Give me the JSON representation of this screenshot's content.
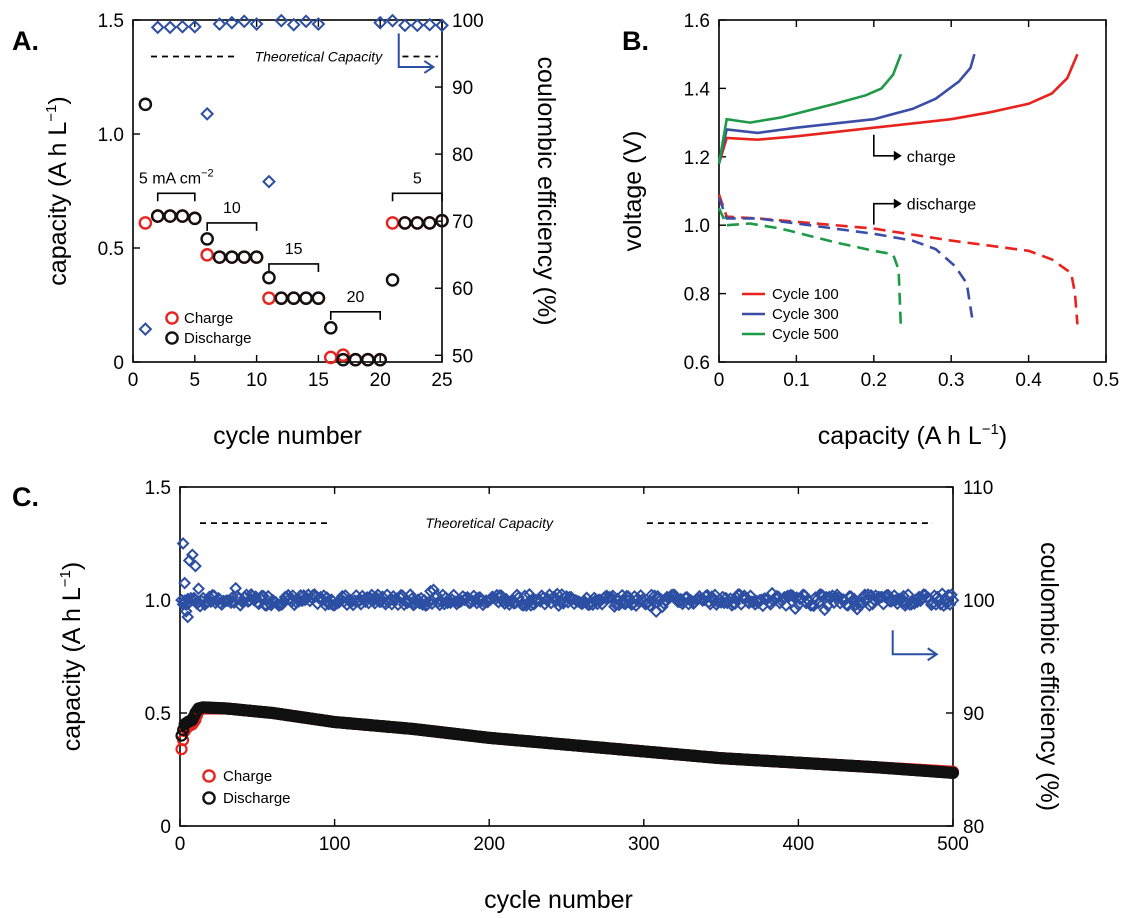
{
  "figure": {
    "colors": {
      "charge": "#e8231e",
      "discharge": "#111111",
      "efficiency": "#2c4fa3",
      "cycle100": "#e8231e",
      "cycle300": "#3a4ea8",
      "cycle500": "#1d9a46"
    }
  },
  "chart_data": [
    {
      "id": "A",
      "panel_label": "A.",
      "type": "scatter",
      "xlabel": "cycle number",
      "ylabel": "capacity (A h L",
      "ylabel_sup": "−1",
      "ylabel_close": ")",
      "y2label": "coulombic efficiency (%)",
      "xlim": [
        0,
        25
      ],
      "ylim": [
        0,
        1.5
      ],
      "y2lim": [
        49,
        100
      ],
      "xticks": [
        "0",
        "5",
        "10",
        "15",
        "20",
        "25"
      ],
      "yticks": [
        "0",
        "0.5",
        "1.0",
        "1.5"
      ],
      "y2ticks": [
        "50",
        "60",
        "70",
        "80",
        "90",
        "100"
      ],
      "theoretical_capacity": {
        "label": "Theoretical Capacity",
        "value": 1.34
      },
      "legend": [
        {
          "name": "Charge",
          "marker": "circle",
          "color": "#e8231e"
        },
        {
          "name": "Discharge",
          "marker": "circle",
          "color": "#111111"
        }
      ],
      "annotations": [
        {
          "text": "5 mA cm",
          "sup": "−2",
          "from": 2,
          "to": 5,
          "y": 0.74
        },
        {
          "text": "10",
          "from": 6,
          "to": 10,
          "y": 0.61
        },
        {
          "text": "15",
          "from": 11,
          "to": 15,
          "y": 0.43
        },
        {
          "text": "20",
          "from": 16,
          "to": 20,
          "y": 0.22
        },
        {
          "text": "5",
          "from": 21,
          "to": 25,
          "y": 0.74
        }
      ],
      "series": [
        {
          "name": "Charge",
          "axis": "left",
          "x": [
            1,
            2,
            3,
            4,
            5,
            6,
            7,
            8,
            9,
            10,
            11,
            12,
            13,
            14,
            15,
            16,
            17,
            18,
            19,
            20,
            21,
            22,
            23,
            24,
            25
          ],
          "values": [
            0.61,
            0.64,
            0.64,
            0.64,
            0.63,
            0.47,
            0.46,
            0.46,
            0.46,
            0.46,
            0.28,
            0.28,
            0.28,
            0.28,
            0.28,
            0.02,
            0.03,
            0.01,
            0.01,
            0.01,
            0.61,
            0.61,
            0.61,
            0.61,
            0.62
          ]
        },
        {
          "name": "Discharge",
          "axis": "left",
          "x": [
            1,
            2,
            3,
            4,
            5,
            6,
            7,
            8,
            9,
            10,
            11,
            12,
            13,
            14,
            15,
            16,
            17,
            18,
            19,
            20,
            21,
            22,
            23,
            24,
            25
          ],
          "values": [
            1.13,
            0.64,
            0.64,
            0.64,
            0.63,
            0.54,
            0.46,
            0.46,
            0.46,
            0.46,
            0.37,
            0.28,
            0.28,
            0.28,
            0.28,
            0.15,
            0.01,
            0.01,
            0.01,
            0.01,
            0.36,
            0.61,
            0.61,
            0.61,
            0.62
          ]
        },
        {
          "name": "Coulombic efficiency",
          "axis": "right",
          "x": [
            1,
            2,
            3,
            4,
            5,
            6,
            7,
            8,
            9,
            10,
            11,
            12,
            13,
            14,
            15,
            16,
            17,
            18,
            19,
            20,
            21,
            22,
            23,
            24,
            25
          ],
          "values": [
            53.9,
            98.9,
            98.9,
            99.0,
            99.0,
            86.0,
            99.4,
            99.6,
            99.8,
            99.4,
            75.9,
            99.9,
            99.3,
            99.8,
            99.4,
            null,
            null,
            null,
            null,
            99.6,
            99.9,
            99.2,
            99.2,
            99.3,
            99.2
          ]
        }
      ]
    },
    {
      "id": "B",
      "panel_label": "B.",
      "type": "line",
      "xlabel": "capacity (A h L",
      "xlabel_sup": "−1",
      "xlabel_close": ")",
      "ylabel": "voltage (V)",
      "xlim": [
        0,
        0.5
      ],
      "ylim": [
        0.6,
        1.6
      ],
      "xticks": [
        "0",
        "0.1",
        "0.2",
        "0.3",
        "0.4",
        "0.5"
      ],
      "yticks": [
        "0.6",
        "0.8",
        "1.0",
        "1.2",
        "1.4",
        "1.6"
      ],
      "annotations": [
        {
          "text": "charge",
          "x": 0.2,
          "y": 1.2
        },
        {
          "text": "discharge",
          "x": 0.2,
          "y": 1.06
        }
      ],
      "series": [
        {
          "name": "Cycle 100",
          "color": "#e8231e",
          "charge": [
            [
              0,
              1.18
            ],
            [
              0.01,
              1.255
            ],
            [
              0.05,
              1.25
            ],
            [
              0.1,
              1.26
            ],
            [
              0.2,
              1.285
            ],
            [
              0.3,
              1.31
            ],
            [
              0.35,
              1.33
            ],
            [
              0.4,
              1.355
            ],
            [
              0.43,
              1.385
            ],
            [
              0.45,
              1.43
            ],
            [
              0.463,
              1.5
            ]
          ],
          "discharge": [
            [
              0,
              1.09
            ],
            [
              0.01,
              1.025
            ],
            [
              0.05,
              1.02
            ],
            [
              0.1,
              1.01
            ],
            [
              0.2,
              0.99
            ],
            [
              0.3,
              0.955
            ],
            [
              0.35,
              0.94
            ],
            [
              0.4,
              0.925
            ],
            [
              0.43,
              0.9
            ],
            [
              0.455,
              0.86
            ],
            [
              0.46,
              0.8
            ],
            [
              0.463,
              0.71
            ]
          ]
        },
        {
          "name": "Cycle 300",
          "color": "#3a4ea8",
          "charge": [
            [
              0,
              1.18
            ],
            [
              0.01,
              1.28
            ],
            [
              0.05,
              1.27
            ],
            [
              0.1,
              1.285
            ],
            [
              0.2,
              1.31
            ],
            [
              0.25,
              1.34
            ],
            [
              0.28,
              1.37
            ],
            [
              0.31,
              1.42
            ],
            [
              0.325,
              1.46
            ],
            [
              0.33,
              1.5
            ]
          ],
          "discharge": [
            [
              0,
              1.08
            ],
            [
              0.01,
              1.02
            ],
            [
              0.05,
              1.02
            ],
            [
              0.1,
              1.005
            ],
            [
              0.2,
              0.975
            ],
            [
              0.25,
              0.955
            ],
            [
              0.28,
              0.93
            ],
            [
              0.305,
              0.88
            ],
            [
              0.32,
              0.83
            ],
            [
              0.327,
              0.73
            ]
          ]
        },
        {
          "name": "Cycle 500",
          "color": "#1d9a46",
          "charge": [
            [
              0,
              1.18
            ],
            [
              0.01,
              1.31
            ],
            [
              0.04,
              1.3
            ],
            [
              0.08,
              1.315
            ],
            [
              0.15,
              1.355
            ],
            [
              0.19,
              1.38
            ],
            [
              0.21,
              1.4
            ],
            [
              0.225,
              1.44
            ],
            [
              0.235,
              1.5
            ]
          ],
          "discharge": [
            [
              0,
              1.05
            ],
            [
              0.01,
              1.0
            ],
            [
              0.04,
              1.005
            ],
            [
              0.08,
              0.99
            ],
            [
              0.15,
              0.95
            ],
            [
              0.2,
              0.925
            ],
            [
              0.225,
              0.915
            ],
            [
              0.232,
              0.87
            ],
            [
              0.235,
              0.7
            ]
          ]
        }
      ]
    },
    {
      "id": "C",
      "panel_label": "C.",
      "type": "scatter",
      "xlabel": "cycle number",
      "ylabel": "capacity (A h L",
      "ylabel_sup": "−1",
      "ylabel_close": ")",
      "y2label": "coulombic efficiency (%)",
      "xlim": [
        0,
        500
      ],
      "ylim": [
        0,
        1.5
      ],
      "y2lim": [
        80,
        110
      ],
      "xticks": [
        "0",
        "100",
        "200",
        "300",
        "400",
        "500"
      ],
      "yticks": [
        "0",
        "0.5",
        "1.0",
        "1.5"
      ],
      "y2ticks": [
        "80",
        "90",
        "100",
        "110"
      ],
      "theoretical_capacity": {
        "label": "Theoretical Capacity",
        "value": 1.34
      },
      "legend": [
        {
          "name": "Charge",
          "marker": "circle",
          "color": "#e8231e"
        },
        {
          "name": "Discharge",
          "marker": "circle",
          "color": "#111111"
        }
      ],
      "series": [
        {
          "name": "Charge",
          "axis": "left",
          "trend": [
            [
              1,
              0.34
            ],
            [
              3,
              0.42
            ],
            [
              5,
              0.44
            ],
            [
              8,
              0.45
            ],
            [
              10,
              0.47
            ],
            [
              12,
              0.51
            ],
            [
              15,
              0.52
            ],
            [
              30,
              0.52
            ],
            [
              60,
              0.5
            ],
            [
              100,
              0.46
            ],
            [
              150,
              0.43
            ],
            [
              200,
              0.39
            ],
            [
              250,
              0.36
            ],
            [
              300,
              0.33
            ],
            [
              350,
              0.3
            ],
            [
              400,
              0.28
            ],
            [
              450,
              0.26
            ],
            [
              500,
              0.24
            ]
          ]
        },
        {
          "name": "Discharge",
          "axis": "left",
          "trend": [
            [
              1,
              0.4
            ],
            [
              3,
              0.45
            ],
            [
              5,
              0.46
            ],
            [
              8,
              0.47
            ],
            [
              10,
              0.5
            ],
            [
              12,
              0.52
            ],
            [
              15,
              0.525
            ],
            [
              30,
              0.52
            ],
            [
              60,
              0.5
            ],
            [
              100,
              0.46
            ],
            [
              150,
              0.43
            ],
            [
              200,
              0.39
            ],
            [
              250,
              0.36
            ],
            [
              300,
              0.33
            ],
            [
              350,
              0.3
            ],
            [
              400,
              0.28
            ],
            [
              450,
              0.26
            ],
            [
              500,
              0.235
            ]
          ]
        },
        {
          "name": "Coulombic efficiency",
          "axis": "right",
          "mean": 100,
          "spread": 0.5,
          "early": [
            [
              2,
              105
            ],
            [
              3,
              101.5
            ],
            [
              4,
              99
            ],
            [
              5,
              98.5
            ],
            [
              6,
              103.5
            ],
            [
              8,
              104
            ],
            [
              10,
              103
            ],
            [
              12,
              101
            ]
          ]
        }
      ]
    }
  ]
}
